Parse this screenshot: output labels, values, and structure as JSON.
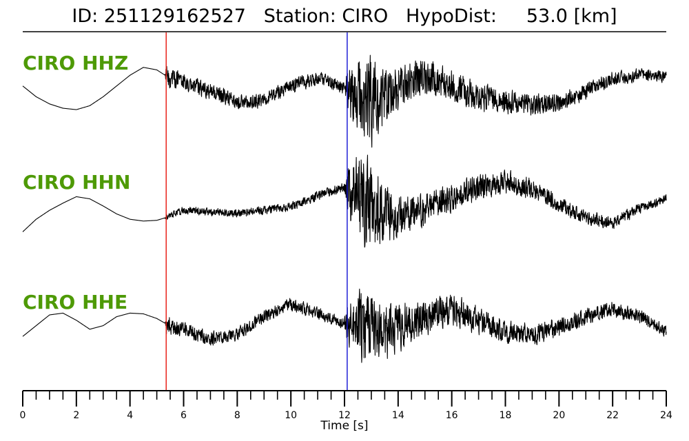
{
  "header": {
    "title": "ID: 251129162527   Station: CIRO   HypoDist:     53.0 [km]"
  },
  "colors": {
    "label": "#4e9a06",
    "trace": "#000000",
    "p_pick": "#e8231a",
    "s_pick": "#1f1fd6"
  },
  "chart_data": {
    "type": "line",
    "title": "ID: 251129162527   Station: CIRO   HypoDist:     53.0 [km]",
    "xlabel": "Time [s]",
    "xlim": [
      0,
      24
    ],
    "x_ticks": [
      0,
      2,
      4,
      6,
      8,
      10,
      12,
      14,
      16,
      18,
      20,
      22,
      24
    ],
    "minor_tick_step": 0.5,
    "picks": [
      {
        "phase": "P",
        "time": 5.35,
        "color": "#e8231a"
      },
      {
        "phase": "S",
        "time": 12.1,
        "color": "#1f1fd6"
      }
    ],
    "series": [
      {
        "name": "CIRO HHZ",
        "envelope_x": [
          0,
          0.5,
          1,
          1.5,
          2,
          2.5,
          3,
          3.5,
          4,
          4.5,
          5,
          5.35,
          6,
          7,
          8,
          9,
          10,
          11,
          12,
          12.5,
          13,
          13.5,
          14,
          15,
          16,
          17,
          18,
          19,
          20,
          21,
          22,
          23,
          24
        ],
        "envelope_y": [
          0.1,
          -0.2,
          -0.4,
          -0.52,
          -0.56,
          -0.45,
          -0.2,
          0.1,
          0.4,
          0.62,
          0.55,
          0.38,
          0.2,
          -0.05,
          -0.35,
          -0.3,
          0.1,
          0.32,
          0.05,
          -0.2,
          -0.32,
          -0.2,
          0.05,
          0.3,
          0.1,
          -0.2,
          -0.35,
          -0.42,
          -0.38,
          -0.05,
          0.32,
          0.42,
          0.35
        ],
        "noise_x": [
          0,
          5.3,
          5.35,
          6,
          9,
          12,
          12.1,
          12.5,
          13.0,
          13.5,
          14.5,
          16,
          18,
          20,
          24
        ],
        "noise_amp": [
          0.0,
          0.0,
          0.4,
          0.28,
          0.24,
          0.22,
          0.8,
          1.25,
          1.45,
          0.95,
          0.7,
          0.55,
          0.4,
          0.32,
          0.18
        ]
      },
      {
        "name": "CIRO HHN",
        "envelope_x": [
          0,
          0.5,
          1,
          1.5,
          2,
          2.5,
          3,
          3.5,
          4,
          4.5,
          5,
          5.35,
          6,
          7,
          8,
          9,
          10,
          11,
          12,
          12.5,
          13,
          13.5,
          14,
          15,
          16,
          17,
          18,
          19,
          20,
          21,
          22,
          23,
          24
        ],
        "envelope_y": [
          -0.7,
          -0.35,
          -0.1,
          0.1,
          0.28,
          0.22,
          0.02,
          -0.2,
          -0.35,
          -0.4,
          -0.38,
          -0.3,
          -0.1,
          -0.15,
          -0.18,
          -0.1,
          0.0,
          0.3,
          0.55,
          0.3,
          -0.05,
          -0.2,
          -0.25,
          -0.1,
          0.25,
          0.55,
          0.7,
          0.5,
          0.05,
          -0.3,
          -0.45,
          -0.05,
          0.25
        ],
        "noise_x": [
          0,
          5.3,
          5.35,
          6,
          9,
          12,
          12.1,
          12.5,
          13.0,
          13.5,
          14.5,
          16,
          18,
          20,
          24
        ],
        "noise_amp": [
          0.0,
          0.0,
          0.1,
          0.12,
          0.14,
          0.16,
          0.9,
          1.3,
          1.55,
          0.95,
          0.6,
          0.45,
          0.4,
          0.28,
          0.14
        ]
      },
      {
        "name": "CIRO HHE",
        "envelope_x": [
          0,
          0.5,
          1,
          1.5,
          2,
          2.5,
          3,
          3.5,
          4,
          4.5,
          5,
          5.35,
          6,
          7,
          8,
          9,
          10,
          11,
          12,
          12.5,
          13,
          13.5,
          14,
          15,
          16,
          17,
          18,
          19,
          20,
          21,
          22,
          23,
          24
        ],
        "envelope_y": [
          -0.35,
          -0.05,
          0.25,
          0.3,
          0.1,
          -0.15,
          -0.05,
          0.2,
          0.3,
          0.28,
          0.15,
          0.0,
          -0.15,
          -0.4,
          -0.3,
          0.2,
          0.55,
          0.3,
          0.02,
          -0.05,
          -0.15,
          -0.3,
          -0.1,
          0.2,
          0.4,
          0.1,
          -0.25,
          -0.3,
          -0.1,
          0.2,
          0.4,
          0.2,
          -0.2
        ],
        "noise_x": [
          0,
          5.3,
          5.35,
          6,
          9,
          12,
          12.1,
          12.5,
          13.0,
          13.5,
          14.5,
          16,
          18,
          20,
          24
        ],
        "noise_amp": [
          0.0,
          0.0,
          0.32,
          0.24,
          0.22,
          0.2,
          0.7,
          1.2,
          1.25,
          0.9,
          0.65,
          0.5,
          0.4,
          0.32,
          0.2
        ]
      }
    ]
  }
}
